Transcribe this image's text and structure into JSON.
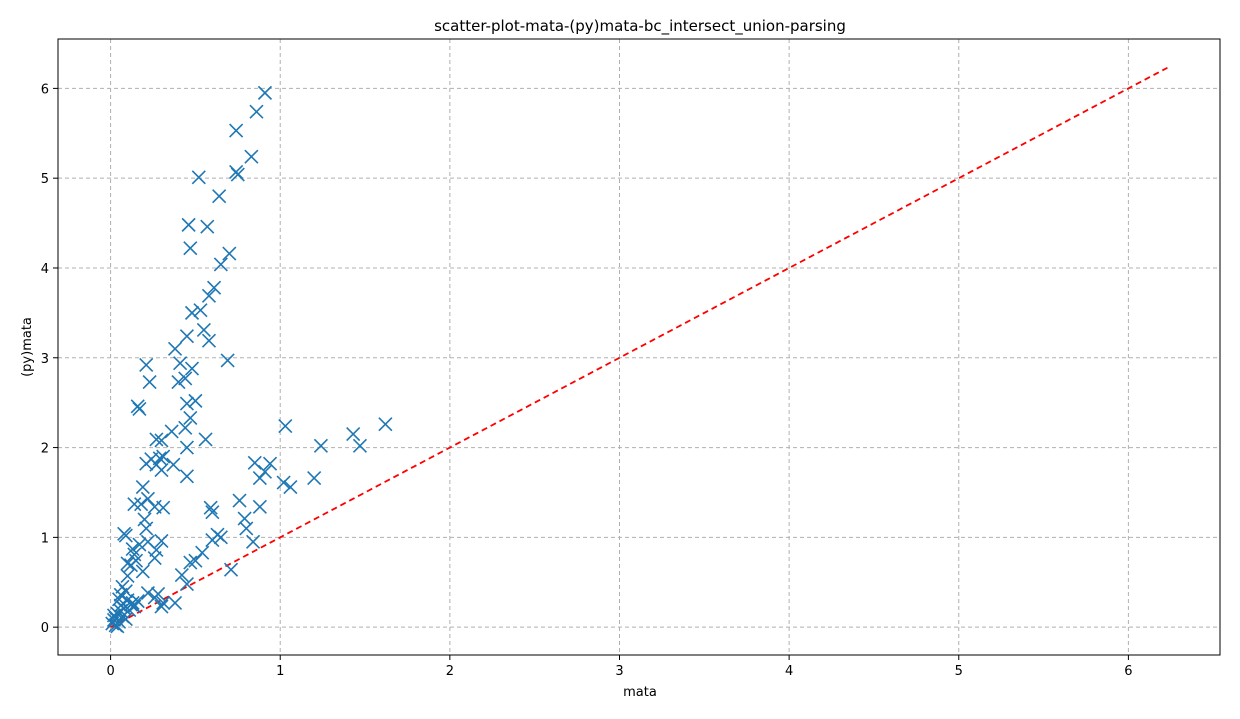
{
  "chart_data": {
    "type": "scatter",
    "title": "scatter-plot-mata-(py)mata-bc_intersect_union-parsing",
    "xlabel": "mata",
    "ylabel": "(py)mata",
    "xlim": [
      -0.31,
      6.54
    ],
    "ylim": [
      -0.31,
      6.55
    ],
    "xticks": [
      0,
      1,
      2,
      3,
      4,
      5,
      6
    ],
    "yticks": [
      0,
      1,
      2,
      3,
      4,
      5,
      6
    ],
    "grid": true,
    "marker": "x",
    "marker_color": "#1f77b4",
    "reference_line": {
      "style": "dashed",
      "color": "#ff0000",
      "from": [
        0,
        0
      ],
      "to": [
        6.23,
        6.23
      ]
    },
    "points": [
      [
        0.91,
        5.95
      ],
      [
        0.86,
        5.74
      ],
      [
        0.74,
        5.53
      ],
      [
        0.83,
        5.24
      ],
      [
        0.74,
        5.07
      ],
      [
        0.75,
        5.04
      ],
      [
        0.52,
        5.01
      ],
      [
        0.64,
        4.8
      ],
      [
        0.46,
        4.48
      ],
      [
        0.57,
        4.46
      ],
      [
        0.47,
        4.22
      ],
      [
        0.7,
        4.16
      ],
      [
        0.65,
        4.04
      ],
      [
        0.61,
        3.78
      ],
      [
        0.58,
        3.69
      ],
      [
        0.53,
        3.53
      ],
      [
        0.48,
        3.5
      ],
      [
        0.55,
        3.31
      ],
      [
        0.45,
        3.24
      ],
      [
        0.58,
        3.19
      ],
      [
        0.38,
        3.1
      ],
      [
        0.41,
        2.94
      ],
      [
        0.69,
        2.97
      ],
      [
        0.21,
        2.92
      ],
      [
        0.48,
        2.88
      ],
      [
        0.44,
        2.77
      ],
      [
        0.23,
        2.73
      ],
      [
        0.4,
        2.73
      ],
      [
        0.5,
        2.52
      ],
      [
        0.45,
        2.49
      ],
      [
        0.16,
        2.46
      ],
      [
        0.17,
        2.43
      ],
      [
        0.47,
        2.33
      ],
      [
        0.44,
        2.22
      ],
      [
        0.36,
        2.18
      ],
      [
        0.27,
        2.09
      ],
      [
        0.3,
        2.08
      ],
      [
        0.56,
        2.09
      ],
      [
        0.45,
        2.0
      ],
      [
        0.24,
        1.87
      ],
      [
        0.29,
        1.88
      ],
      [
        0.31,
        1.9
      ],
      [
        0.21,
        1.82
      ],
      [
        0.27,
        1.81
      ],
      [
        0.37,
        1.81
      ],
      [
        0.3,
        1.75
      ],
      [
        0.45,
        1.68
      ],
      [
        0.19,
        1.56
      ],
      [
        0.22,
        1.43
      ],
      [
        0.18,
        1.37
      ],
      [
        0.14,
        1.37
      ],
      [
        0.31,
        1.33
      ],
      [
        0.26,
        1.34
      ],
      [
        0.59,
        1.33
      ],
      [
        0.6,
        1.28
      ],
      [
        0.2,
        1.2
      ],
      [
        0.21,
        1.1
      ],
      [
        0.08,
        1.04
      ],
      [
        0.09,
        1.02
      ],
      [
        0.22,
        0.95
      ],
      [
        0.3,
        0.96
      ],
      [
        0.17,
        0.92
      ],
      [
        0.13,
        0.87
      ],
      [
        0.27,
        0.86
      ],
      [
        0.14,
        0.81
      ],
      [
        0.26,
        0.77
      ],
      [
        0.1,
        0.71
      ],
      [
        0.12,
        0.69
      ],
      [
        0.15,
        0.74
      ],
      [
        0.19,
        0.62
      ],
      [
        0.1,
        0.57
      ],
      [
        0.07,
        0.45
      ],
      [
        0.09,
        0.4
      ],
      [
        0.06,
        0.36
      ],
      [
        0.05,
        0.31
      ],
      [
        0.1,
        0.3
      ],
      [
        0.13,
        0.27
      ],
      [
        0.12,
        0.25
      ],
      [
        0.08,
        0.21
      ],
      [
        0.06,
        0.18
      ],
      [
        0.04,
        0.15
      ],
      [
        0.07,
        0.12
      ],
      [
        0.03,
        0.1
      ],
      [
        0.02,
        0.08
      ],
      [
        0.05,
        0.06
      ],
      [
        0.01,
        0.04
      ],
      [
        0.03,
        0.02
      ],
      [
        0.04,
        0.01
      ],
      [
        0.02,
        0.13
      ],
      [
        0.09,
        0.09
      ],
      [
        0.11,
        0.19
      ],
      [
        0.06,
        0.24
      ],
      [
        0.14,
        0.23
      ],
      [
        0.16,
        0.29
      ],
      [
        0.22,
        0.38
      ],
      [
        0.26,
        0.33
      ],
      [
        0.28,
        0.37
      ],
      [
        0.31,
        0.27
      ],
      [
        0.38,
        0.27
      ],
      [
        0.3,
        0.23
      ],
      [
        0.42,
        0.58
      ],
      [
        0.45,
        0.48
      ],
      [
        0.47,
        0.72
      ],
      [
        0.5,
        0.74
      ],
      [
        0.54,
        0.83
      ],
      [
        0.6,
        0.97
      ],
      [
        0.63,
        1.03
      ],
      [
        0.65,
        1.0
      ],
      [
        0.71,
        0.64
      ],
      [
        0.76,
        1.41
      ],
      [
        0.79,
        1.21
      ],
      [
        0.8,
        1.1
      ],
      [
        0.84,
        0.95
      ],
      [
        0.85,
        1.83
      ],
      [
        0.88,
        1.66
      ],
      [
        0.88,
        1.34
      ],
      [
        0.91,
        1.73
      ],
      [
        0.94,
        1.82
      ],
      [
        1.02,
        1.61
      ],
      [
        1.06,
        1.56
      ],
      [
        1.03,
        2.24
      ],
      [
        1.2,
        1.66
      ],
      [
        1.24,
        2.02
      ],
      [
        1.43,
        2.15
      ],
      [
        1.47,
        2.02
      ],
      [
        1.62,
        2.26
      ]
    ]
  }
}
